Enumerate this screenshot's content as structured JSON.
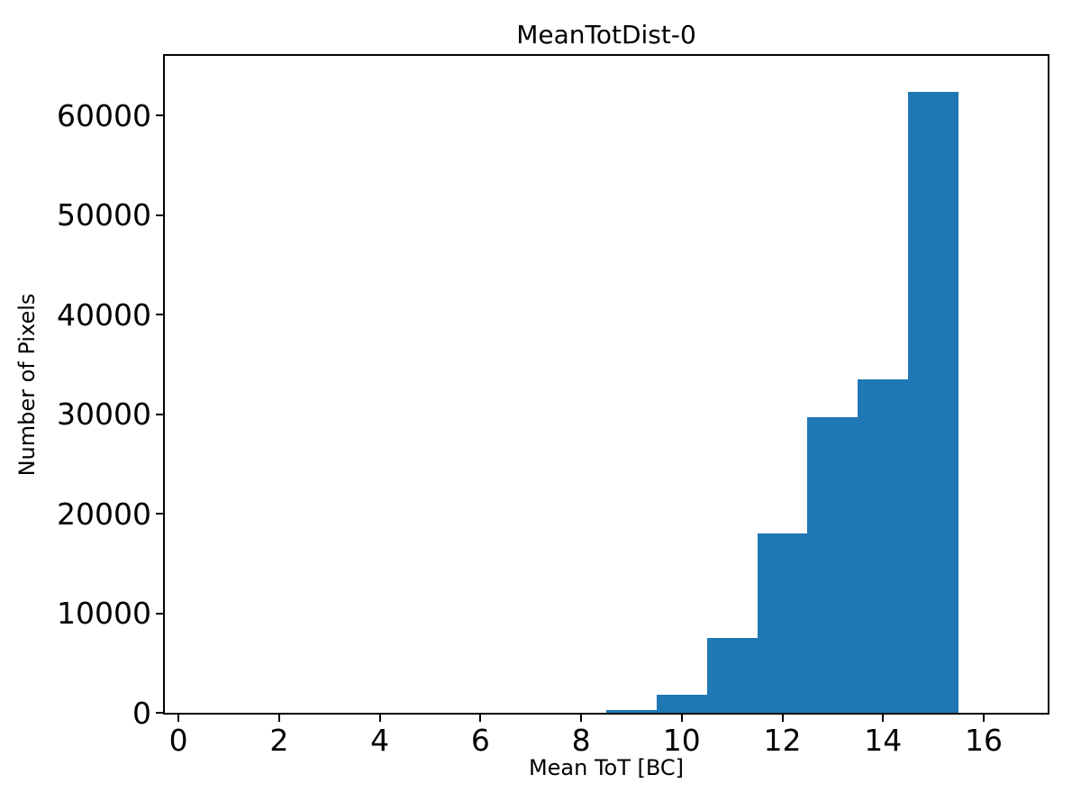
{
  "chart_data": {
    "type": "bar",
    "subtype": "histogram",
    "title": "MeanTotDist-0",
    "xlabel": "Mean ToT [BC]",
    "ylabel": "Number of Pixels",
    "bin_edges": [
      8.5,
      9.5,
      10.5,
      11.5,
      12.5,
      13.5,
      14.5,
      15.5
    ],
    "counts": [
      300,
      1800,
      7500,
      18000,
      29700,
      33500,
      62400
    ],
    "bar_color": "#1f77b4",
    "axis_color": "#000000",
    "xticks": [
      0,
      2,
      4,
      6,
      8,
      10,
      12,
      14,
      16
    ],
    "yticks": [
      0,
      10000,
      20000,
      30000,
      40000,
      50000,
      60000
    ],
    "xlim": [
      -0.27,
      17.27
    ],
    "ylim": [
      0,
      66000
    ],
    "grid": false,
    "legend": false
  }
}
